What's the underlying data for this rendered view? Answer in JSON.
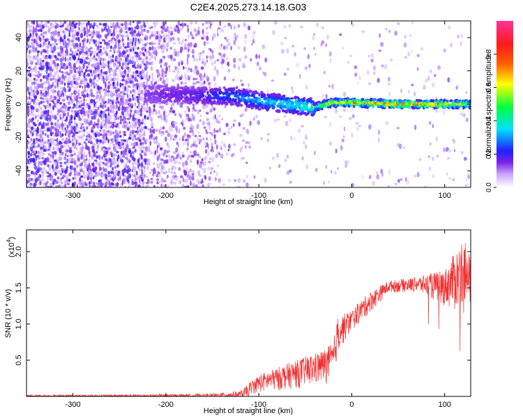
{
  "title": "C2E4.2025.273.14.18.G03",
  "chart_data": [
    {
      "type": "heatmap",
      "name": "spectrogram",
      "xlabel": "Height of straight line (km)",
      "ylabel": "Frequency (Hz)",
      "xlim": [
        -350,
        128
      ],
      "ylim": [
        -50,
        50
      ],
      "xticks": [
        -300,
        -200,
        -100,
        0,
        100
      ],
      "xtick_labels": [
        "-300",
        "-200",
        "-100",
        "0",
        "100"
      ],
      "yticks": [
        -40,
        -20,
        0,
        20,
        40
      ],
      "ytick_labels": [
        "-40",
        "-20",
        "0",
        "20",
        "40"
      ],
      "colorbar": {
        "label": "Normalized spectral amplitude",
        "range": [
          0,
          1
        ],
        "ticks": [
          0.0,
          0.2,
          0.4,
          0.6,
          0.8
        ],
        "tick_labels": [
          "0.0",
          "0.2",
          "0.4",
          "0.6",
          "0.8"
        ],
        "colors": [
          "#ffffff",
          "#c7a6ff",
          "#7a22e6",
          "#2020ff",
          "#00e0ff",
          "#00ff40",
          "#ffff00",
          "#ff6000",
          "#ff1a1a",
          "#ff3399"
        ]
      },
      "ridge": [
        {
          "x": -220,
          "f": 6,
          "amp": 0.14
        },
        {
          "x": -200,
          "f": 6,
          "amp": 0.16
        },
        {
          "x": -160,
          "f": 5,
          "amp": 0.2
        },
        {
          "x": -130,
          "f": 5,
          "amp": 0.3
        },
        {
          "x": -100,
          "f": 2,
          "amp": 0.36
        },
        {
          "x": -70,
          "f": 0,
          "amp": 0.42
        },
        {
          "x": -40,
          "f": -2,
          "amp": 0.5
        },
        {
          "x": -20,
          "f": 1,
          "amp": 0.72
        },
        {
          "x": 0,
          "f": 1,
          "amp": 0.78
        },
        {
          "x": 50,
          "f": 0,
          "amp": 0.85
        },
        {
          "x": 100,
          "f": 0,
          "amp": 0.82
        },
        {
          "x": 128,
          "f": 0,
          "amp": 0.6
        }
      ]
    },
    {
      "type": "line",
      "name": "snr",
      "xlabel": "Height of straight line (km)",
      "ylabel": "SNR (10 * v/v)",
      "multiplier": "(x10",
      "multiplier_exp": "4",
      "multiplier_close": ")",
      "color": "#f03030",
      "xlim": [
        -350,
        128
      ],
      "ylim": [
        0,
        2.3
      ],
      "xticks": [
        -300,
        -200,
        -100,
        0,
        100
      ],
      "xtick_labels": [
        "-300",
        "-200",
        "-100",
        "0",
        "100"
      ],
      "yticks": [
        0.5,
        1.0,
        1.5,
        2.0
      ],
      "ytick_labels": [
        "0.5",
        "1.0",
        "1.5",
        "2.0"
      ],
      "envelope": [
        {
          "x": -350,
          "lo": 0.0,
          "hi": 0.02
        },
        {
          "x": -210,
          "lo": 0.0,
          "hi": 0.03
        },
        {
          "x": -150,
          "lo": 0.0,
          "hi": 0.04
        },
        {
          "x": -120,
          "lo": 0.0,
          "hi": 0.08
        },
        {
          "x": -100,
          "lo": 0.0,
          "hi": 0.3
        },
        {
          "x": -80,
          "lo": 0.02,
          "hi": 0.4
        },
        {
          "x": -50,
          "lo": 0.05,
          "hi": 0.55
        },
        {
          "x": -30,
          "lo": 0.08,
          "hi": 0.65
        },
        {
          "x": -20,
          "lo": 0.1,
          "hi": 0.75
        },
        {
          "x": -15,
          "lo": 0.5,
          "hi": 1.1
        },
        {
          "x": 0,
          "lo": 0.85,
          "hi": 1.2
        },
        {
          "x": 20,
          "lo": 1.1,
          "hi": 1.45
        },
        {
          "x": 40,
          "lo": 1.4,
          "hi": 1.6
        },
        {
          "x": 70,
          "lo": 1.4,
          "hi": 1.65
        },
        {
          "x": 100,
          "lo": 1.15,
          "hi": 1.75
        },
        {
          "x": 120,
          "lo": 0.9,
          "hi": 2.2
        },
        {
          "x": 128,
          "lo": 1.1,
          "hi": 1.9
        }
      ]
    }
  ]
}
